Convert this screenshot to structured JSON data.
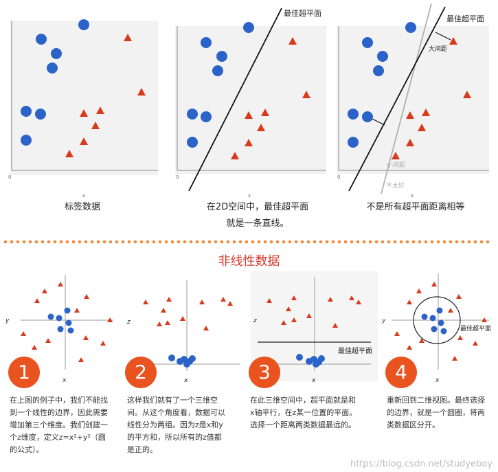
{
  "top_panels": {
    "axis_x_label": "x",
    "axis_origin": "0",
    "panel1_caption": "标签数据",
    "panel2_caption_line1": "在2D空间中，最佳超平面",
    "panel2_caption_line2": "就是一条直线。",
    "panel3_caption": "不是所有超平面距离相等",
    "best_hyperplane_label": "最佳超平面",
    "big_margin_label": "大间距",
    "small_margin_label": "小间距",
    "not_good_label": "不太好"
  },
  "section_title": "非线性数据",
  "bottom_panels": {
    "label_y": "y",
    "label_z": "z",
    "label_x": "x",
    "best_hyperplane_label": "最佳超平面"
  },
  "steps": [
    {
      "number": "1",
      "text_html": "在上图的例子中，我们不能找到一个线性的边界，因此需要增加第三个维度。我们创建一个z维度，定义z=x²+y²（圆的公式）。"
    },
    {
      "number": "2",
      "text_html": "这样我们就有了一个三维空间。从这个角度看，数据可以线性分为两组。因为z是x和y的平方和，所以所有的z值都是正的。"
    },
    {
      "number": "3",
      "text_html": "在此三维空间中，超平面就是和x轴平行，在z某一位置的平面。选择一个距离两类数据最远的。"
    },
    {
      "number": "4",
      "text_html": "重新回到二维视图。最终选择的边界，就是一个圆圈，将两类数据区分开。"
    }
  ],
  "watermark": "https://blog.csdn.net/studyeboy",
  "colors": {
    "blue": "#2b63c9",
    "red": "#d93a1b",
    "badge": "#e9531f",
    "dots": "#f08a3a"
  }
}
